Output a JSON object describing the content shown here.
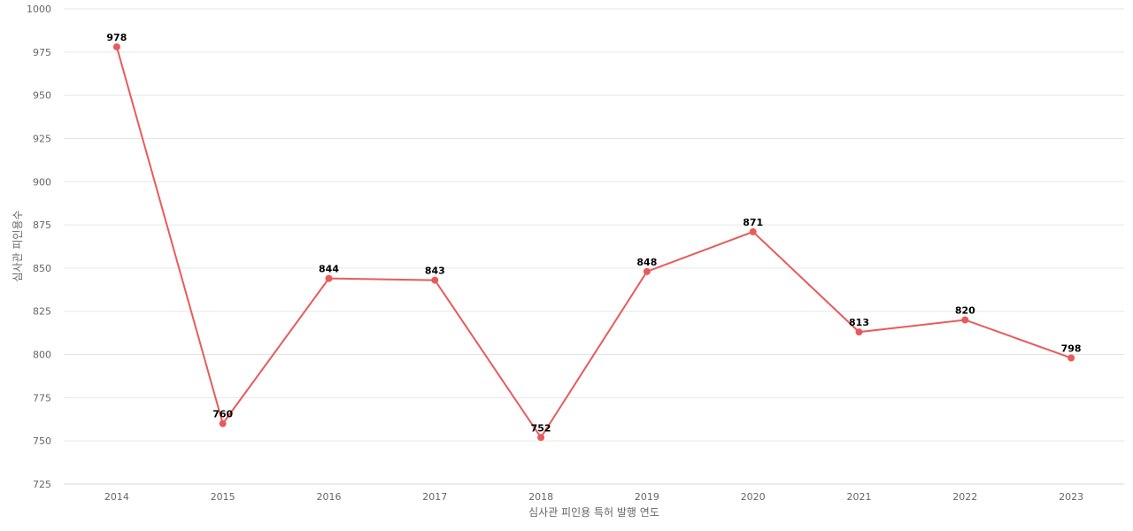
{
  "chart_data": {
    "type": "line",
    "title": "",
    "xlabel": "심사관 피인용 특허 발행 연도",
    "ylabel": "심사관 피인용수",
    "categories": [
      "2014",
      "2015",
      "2016",
      "2017",
      "2018",
      "2019",
      "2020",
      "2021",
      "2022",
      "2023"
    ],
    "series": [
      {
        "name": "",
        "values": [
          978,
          760,
          844,
          843,
          752,
          848,
          871,
          813,
          820,
          798
        ],
        "color": "#e85b5b"
      }
    ],
    "ylim": [
      725,
      1000
    ],
    "yticks": [
      "725",
      "750",
      "775",
      "800",
      "825",
      "850",
      "875",
      "900",
      "925",
      "950",
      "975",
      "1000"
    ],
    "data_labels": [
      "978",
      "760",
      "844",
      "843",
      "752",
      "848",
      "871",
      "813",
      "820",
      "798"
    ],
    "grid": true,
    "legend": "none"
  }
}
